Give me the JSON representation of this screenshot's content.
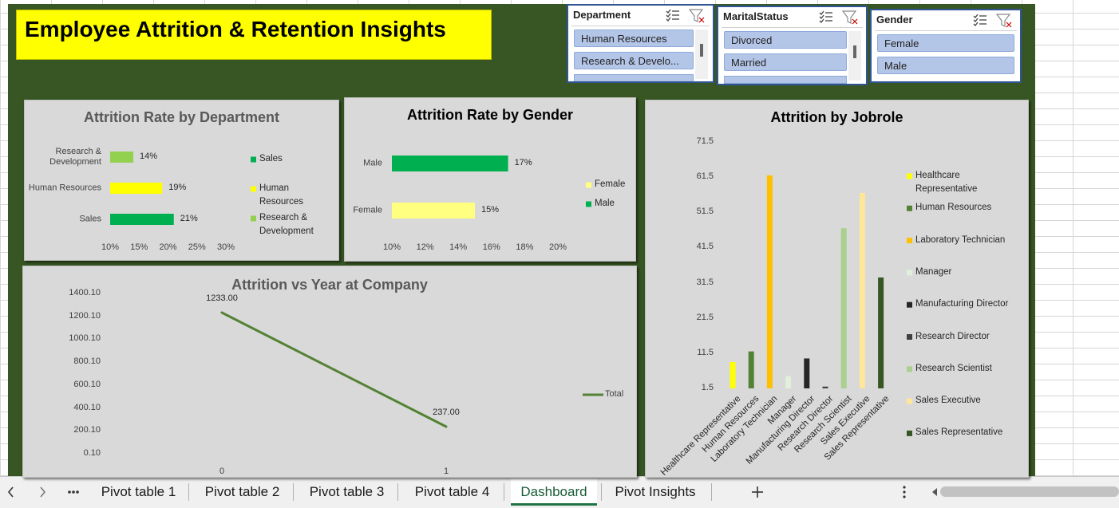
{
  "title": "Employee Attrition & Retention Insights",
  "slicers": [
    {
      "title": "Department",
      "items": [
        "Human Resources",
        "Research & Develo..."
      ]
    },
    {
      "title": "MaritalStatus",
      "items": [
        "Divorced",
        "Married"
      ]
    },
    {
      "title": "Gender",
      "items": [
        "Female",
        "Male"
      ]
    }
  ],
  "sheet_tabs": {
    "tabs": [
      "Pivot table 1",
      "Pivot table 2",
      "Pivot table 3",
      "Pivot table 4",
      "Dashboard",
      "Pivot Insights"
    ],
    "active": 4
  },
  "chart_data": [
    {
      "type": "bar",
      "orientation": "horizontal",
      "title": "Attrition Rate by Department",
      "categories": [
        "Research & Development",
        "Human Resources",
        "Sales"
      ],
      "values": [
        14,
        19,
        21
      ],
      "value_labels": [
        "14%",
        "19%",
        "21%"
      ],
      "colors": [
        "#92d050",
        "#ffff00",
        "#00b050"
      ],
      "xlim": [
        10,
        30
      ],
      "xticks": [
        {
          "value": 10,
          "label": "10%"
        },
        {
          "value": 15,
          "label": "15%"
        },
        {
          "value": 20,
          "label": "20%"
        },
        {
          "value": 25,
          "label": "25%"
        },
        {
          "value": 30,
          "label": "30%"
        }
      ],
      "legend": "right"
    },
    {
      "type": "bar",
      "orientation": "horizontal",
      "title": "Attrition Rate by Gender",
      "categories": [
        "Male",
        "Female"
      ],
      "values": [
        17,
        15
      ],
      "value_labels": [
        "17%",
        "15%"
      ],
      "colors": [
        "#00b050",
        "#ffff80"
      ],
      "xlim": [
        10,
        20
      ],
      "xticks": [
        {
          "value": 10,
          "label": "10%"
        },
        {
          "value": 12,
          "label": "12%"
        },
        {
          "value": 14,
          "label": "14%"
        },
        {
          "value": 16,
          "label": "16%"
        },
        {
          "value": 18,
          "label": "18%"
        },
        {
          "value": 20,
          "label": "20%"
        }
      ],
      "legend": "right"
    },
    {
      "type": "line",
      "title": "Attrition vs Year at Company",
      "categories": [
        "0",
        "1"
      ],
      "series": [
        {
          "name": "Total",
          "color": "#548235",
          "values": [
            1233,
            237
          ],
          "value_labels": [
            "1233.00",
            "237.00"
          ]
        }
      ],
      "ylim": [
        0.1,
        1400.1
      ],
      "yticks": [
        {
          "value": 0.1,
          "label": "0.10"
        },
        {
          "value": 200.1,
          "label": "200.10"
        },
        {
          "value": 400.1,
          "label": "400.10"
        },
        {
          "value": 600.1,
          "label": "600.10"
        },
        {
          "value": 800.1,
          "label": "800.10"
        },
        {
          "value": 1000.1,
          "label": "1000.10"
        },
        {
          "value": 1200.1,
          "label": "1200.10"
        },
        {
          "value": 1400.1,
          "label": "1400.10"
        }
      ],
      "legend": "right"
    },
    {
      "type": "bar",
      "orientation": "vertical",
      "title": "Attrition by Jobrole",
      "categories": [
        "Healthcare Representative",
        "Human Resources",
        "Laboratory Technician",
        "Manager",
        "Manufacturing Director",
        "Research Director",
        "Research Scientist",
        "Sales Executive",
        "Sales Representative"
      ],
      "values": [
        9,
        12,
        62,
        5,
        10,
        2,
        47,
        57,
        33
      ],
      "colors": [
        "#ffff00",
        "#548235",
        "#ffc000",
        "#e2efda",
        "#262626",
        "#404040",
        "#a9d08e",
        "#ffe699",
        "#375623"
      ],
      "ylim": [
        1.5,
        71.5
      ],
      "yticks": [
        1.5,
        11.5,
        21.5,
        31.5,
        41.5,
        51.5,
        61.5,
        71.5
      ],
      "legend": "right"
    }
  ]
}
